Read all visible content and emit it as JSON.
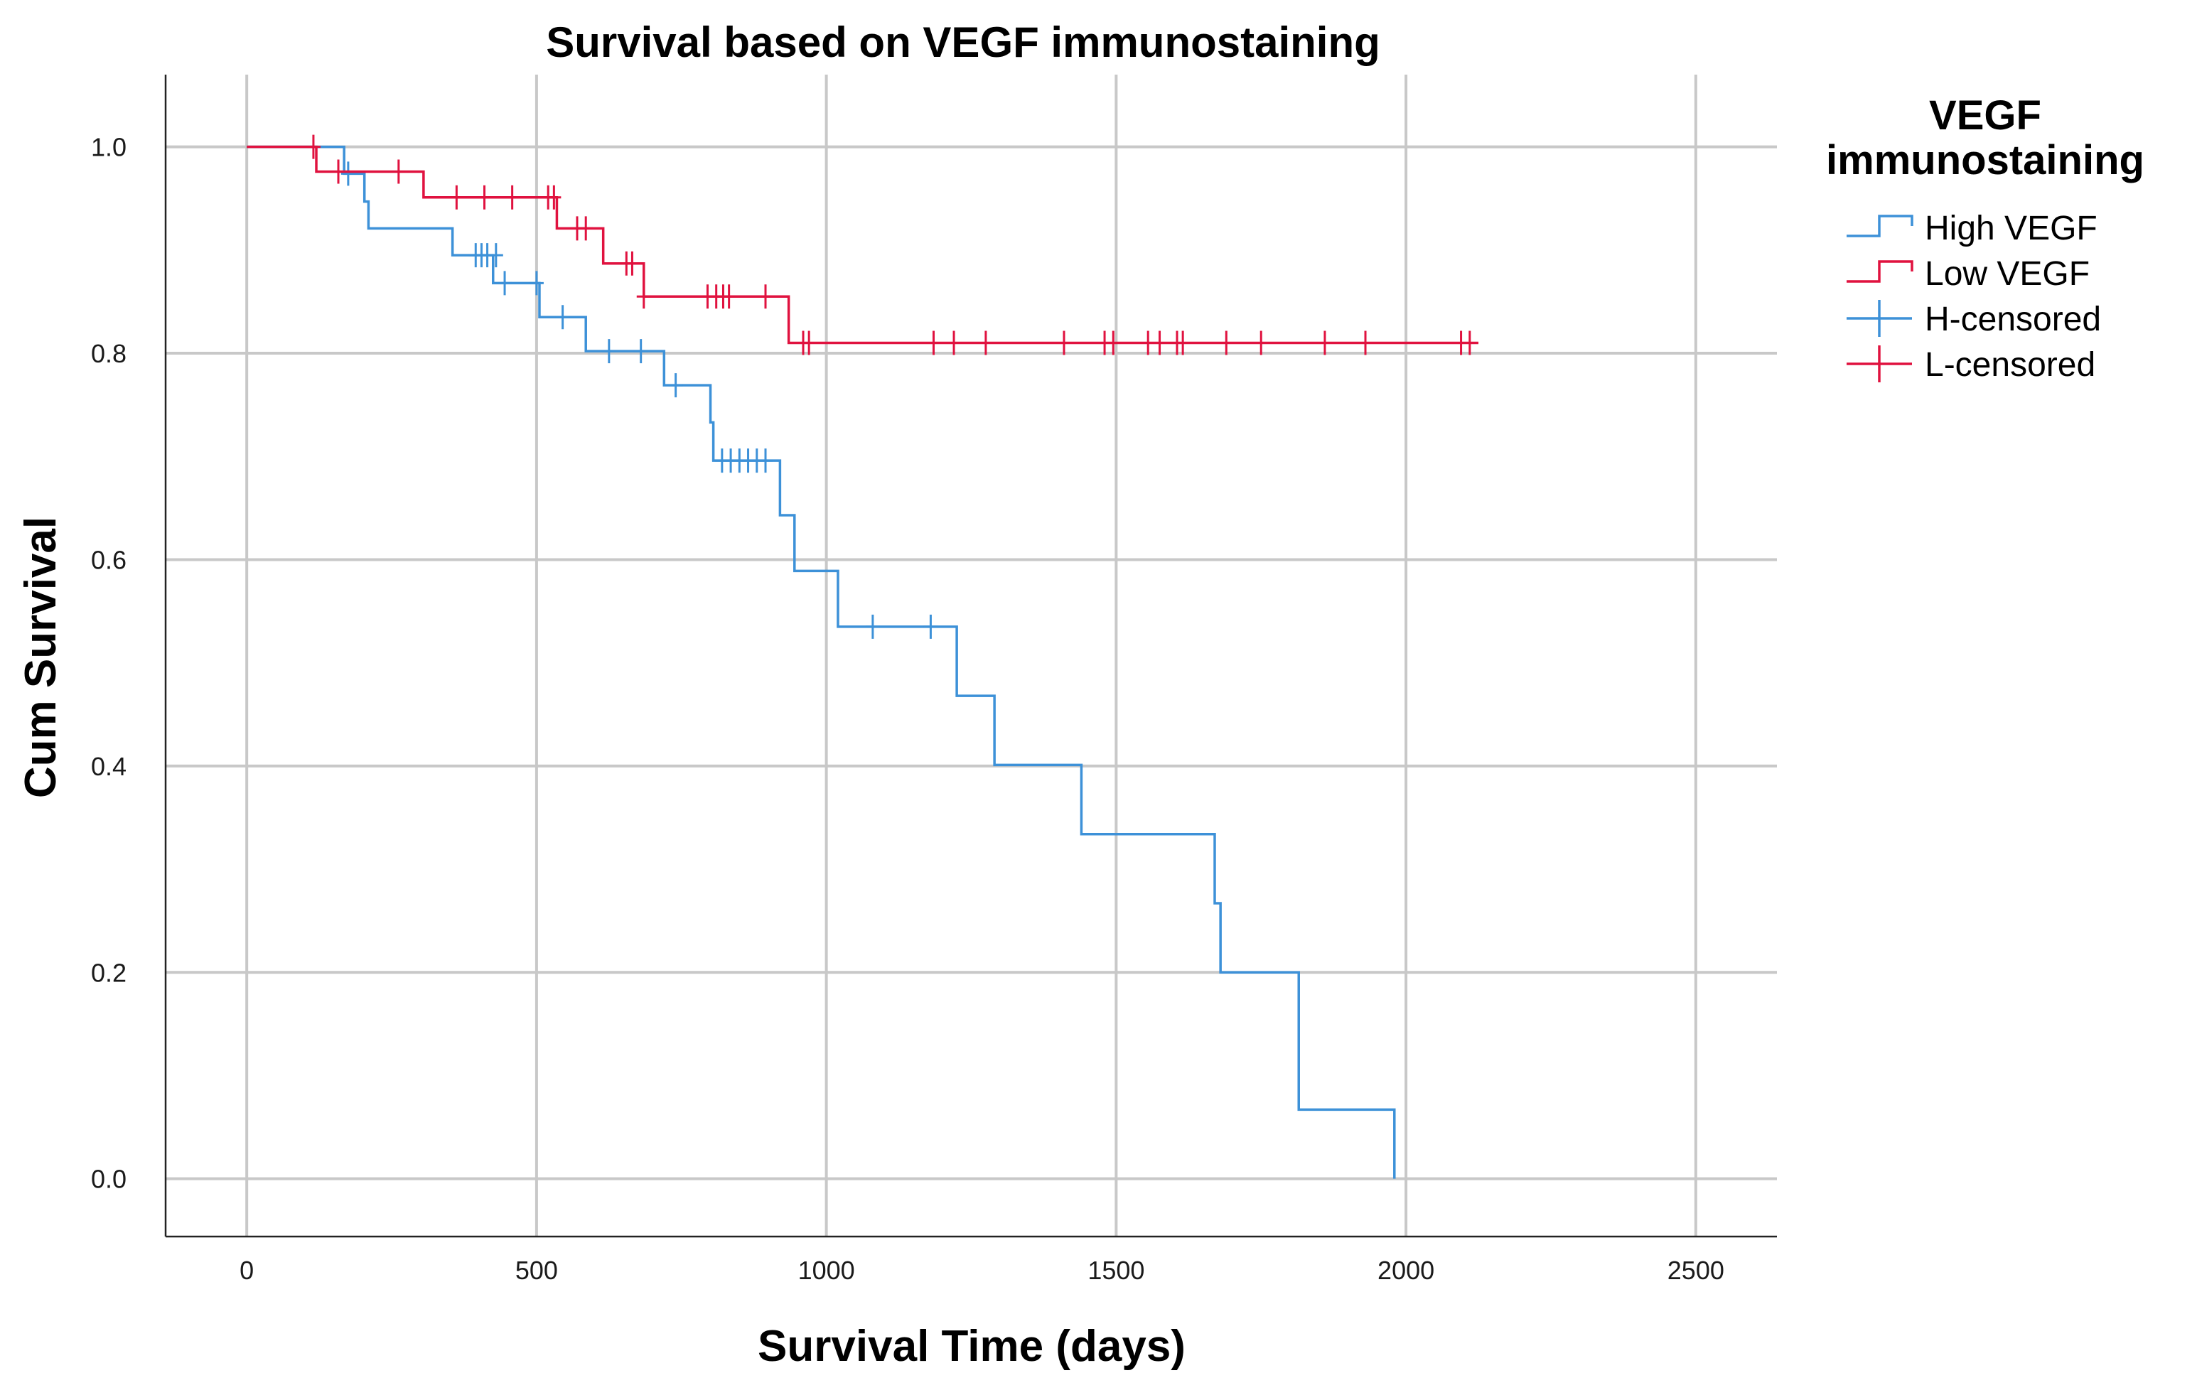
{
  "chart_data": {
    "type": "line",
    "subtype": "kaplan-meier-step",
    "title": "Survival based on VEGF immunostaining",
    "xlabel": "Survival Time (days)",
    "ylabel": "Cum Survival",
    "xlim": [
      -140,
      2640
    ],
    "ylim": [
      -0.056,
      1.07
    ],
    "x_ticks": [
      0,
      500,
      1000,
      1500,
      2000,
      2500
    ],
    "x_tick_labels": [
      "0",
      "500",
      "1000",
      "1500",
      "2000",
      "2500"
    ],
    "y_ticks": [
      0.0,
      0.2,
      0.4,
      0.6,
      0.8,
      1.0
    ],
    "y_tick_labels": [
      "0.0",
      "0.2",
      "0.4",
      "0.6",
      "0.8",
      "1.0"
    ],
    "grid": true,
    "legend": {
      "title_lines": [
        "VEGF",
        "immunostaining"
      ],
      "position": "top-right-outside",
      "entries": [
        {
          "label": "High VEGF",
          "kind": "step",
          "color": "#3d91d8"
        },
        {
          "label": "Low VEGF",
          "kind": "step",
          "color": "#e0123f"
        },
        {
          "label": "H-censored",
          "kind": "cross",
          "color": "#3d91d8"
        },
        {
          "label": "L-censored",
          "kind": "cross",
          "color": "#e0123f"
        }
      ]
    },
    "series": [
      {
        "name": "High VEGF",
        "color": "#3d91d8",
        "steps": [
          [
            0,
            1.0
          ],
          [
            168,
            0.974
          ],
          [
            203,
            0.947
          ],
          [
            210,
            0.921
          ],
          [
            355,
            0.895
          ],
          [
            425,
            0.868
          ],
          [
            505,
            0.835
          ],
          [
            585,
            0.802
          ],
          [
            720,
            0.769
          ],
          [
            800,
            0.733
          ],
          [
            805,
            0.696
          ],
          [
            920,
            0.643
          ],
          [
            945,
            0.589
          ],
          [
            1020,
            0.535
          ],
          [
            1225,
            0.468
          ],
          [
            1290,
            0.401
          ],
          [
            1440,
            0.334
          ],
          [
            1670,
            0.267
          ],
          [
            1680,
            0.2
          ],
          [
            1815,
            0.067
          ],
          [
            1980,
            0.0
          ]
        ],
        "end_x": 1980,
        "censored": [
          [
            175,
            0.974
          ],
          [
            395,
            0.895
          ],
          [
            405,
            0.895
          ],
          [
            415,
            0.895
          ],
          [
            430,
            0.895
          ],
          [
            445,
            0.868
          ],
          [
            500,
            0.868
          ],
          [
            545,
            0.835
          ],
          [
            625,
            0.802
          ],
          [
            680,
            0.802
          ],
          [
            740,
            0.769
          ],
          [
            820,
            0.696
          ],
          [
            835,
            0.696
          ],
          [
            850,
            0.696
          ],
          [
            865,
            0.696
          ],
          [
            880,
            0.696
          ],
          [
            895,
            0.696
          ],
          [
            1080,
            0.535
          ],
          [
            1180,
            0.535
          ]
        ]
      },
      {
        "name": "Low VEGF",
        "color": "#e0123f",
        "steps": [
          [
            0,
            1.0
          ],
          [
            120,
            0.976
          ],
          [
            305,
            0.951
          ],
          [
            535,
            0.921
          ],
          [
            615,
            0.887
          ],
          [
            685,
            0.855
          ],
          [
            935,
            0.81
          ]
        ],
        "end_x": 2125,
        "censored": [
          [
            115,
            1.0
          ],
          [
            158,
            0.976
          ],
          [
            262,
            0.976
          ],
          [
            362,
            0.951
          ],
          [
            410,
            0.951
          ],
          [
            458,
            0.951
          ],
          [
            520,
            0.951
          ],
          [
            530,
            0.951
          ],
          [
            570,
            0.921
          ],
          [
            585,
            0.921
          ],
          [
            655,
            0.887
          ],
          [
            665,
            0.887
          ],
          [
            685,
            0.855
          ],
          [
            795,
            0.855
          ],
          [
            810,
            0.855
          ],
          [
            822,
            0.855
          ],
          [
            832,
            0.855
          ],
          [
            895,
            0.855
          ],
          [
            960,
            0.81
          ],
          [
            970,
            0.81
          ],
          [
            1185,
            0.81
          ],
          [
            1220,
            0.81
          ],
          [
            1275,
            0.81
          ],
          [
            1410,
            0.81
          ],
          [
            1480,
            0.81
          ],
          [
            1495,
            0.81
          ],
          [
            1555,
            0.81
          ],
          [
            1575,
            0.81
          ],
          [
            1605,
            0.81
          ],
          [
            1615,
            0.81
          ],
          [
            1690,
            0.81
          ],
          [
            1750,
            0.81
          ],
          [
            1860,
            0.81
          ],
          [
            1930,
            0.81
          ],
          [
            2095,
            0.81
          ],
          [
            2110,
            0.81
          ]
        ]
      }
    ]
  }
}
